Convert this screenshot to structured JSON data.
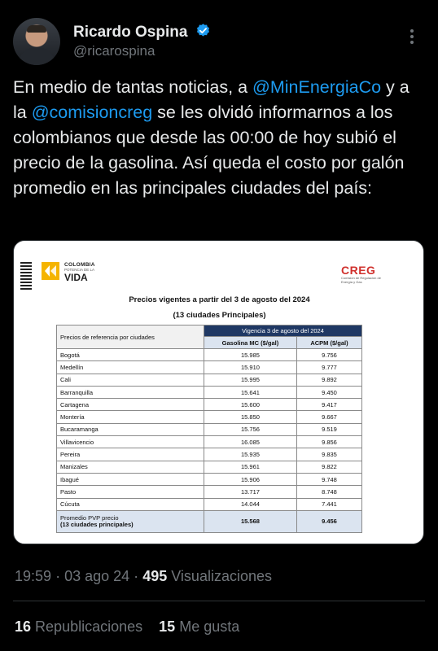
{
  "author": {
    "name": "Ricardo Ospina",
    "handle": "@ricarospina"
  },
  "tweet": {
    "text_1": "En medio de tantas noticias, a ",
    "mention_1": "@MinEnergiaCo",
    "text_2": " y a la ",
    "mention_2": "@comisioncreg",
    "text_3": " se les olvidó informarnos a los colombianos que desde las 00:00 de hoy subió el precio de la gasolina. Así queda el costo por galón promedio en las principales ciudades del país:"
  },
  "attachment": {
    "logo_left": {
      "line1": "COLOMBIA",
      "line2": "POTENCIA DE LA",
      "line3": "VIDA"
    },
    "logo_right": {
      "name": "CREG",
      "subtitle": "Comisión de Regulación de Energía y Gas"
    },
    "title": "Precios vigentes a partir del 3 de agosto del 2024",
    "subtitle": "(13 ciudades Principales)",
    "table": {
      "row_header": "Precios de referencia por ciudades",
      "group_header": "Vigencia 3 de agosto del 2024",
      "col_gasolina": "Gasolina MC ($/gal)",
      "col_acpm": "ACPM ($/gal)",
      "rows": [
        {
          "city": "Bogotá",
          "gasolina": "15.985",
          "acpm": "9.756"
        },
        {
          "city": "Medellín",
          "gasolina": "15.910",
          "acpm": "9.777"
        },
        {
          "city": "Cali",
          "gasolina": "15.995",
          "acpm": "9.892"
        },
        {
          "city": "Barranquilla",
          "gasolina": "15.641",
          "acpm": "9.450"
        },
        {
          "city": "Cartagena",
          "gasolina": "15.600",
          "acpm": "9.417"
        },
        {
          "city": "Montería",
          "gasolina": "15.850",
          "acpm": "9.667"
        },
        {
          "city": "Bucaramanga",
          "gasolina": "15.756",
          "acpm": "9.519"
        },
        {
          "city": "Villavicencio",
          "gasolina": "16.085",
          "acpm": "9.856"
        },
        {
          "city": "Pereira",
          "gasolina": "15.935",
          "acpm": "9.835"
        },
        {
          "city": "Manizales",
          "gasolina": "15.961",
          "acpm": "9.822"
        },
        {
          "city": "Ibagué",
          "gasolina": "15.906",
          "acpm": "9.748"
        },
        {
          "city": "Pasto",
          "gasolina": "13.717",
          "acpm": "8.748"
        },
        {
          "city": "Cúcuta",
          "gasolina": "14.044",
          "acpm": "7.441"
        }
      ],
      "total": {
        "line1": "Promedio PVP precio",
        "line2": "(13 ciudades principales)",
        "gasolina": "15.568",
        "acpm": "9.456"
      }
    }
  },
  "meta": {
    "time": "19:59",
    "date": "03 ago 24",
    "views_count": "495",
    "views_label": "Visualizaciones"
  },
  "stats": {
    "reposts_count": "16",
    "reposts_label": "Republicaciones",
    "likes_count": "15",
    "likes_label": "Me gusta"
  },
  "colors": {
    "background": "#000000",
    "link": "#1d9bf0",
    "muted": "#71767b",
    "verified": "#1d9bf0"
  }
}
